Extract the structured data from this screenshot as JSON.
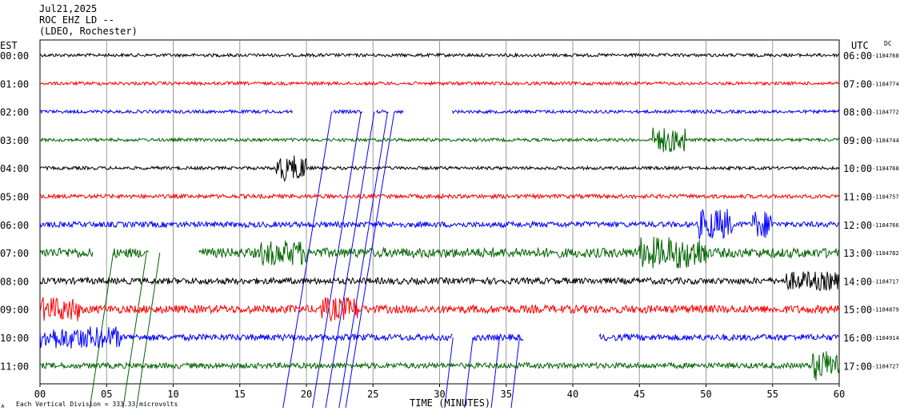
{
  "header": {
    "date": "Jul21,2025",
    "station": "ROC EHZ LD --",
    "network": "(LDEO, Rochester)"
  },
  "chart_data": {
    "type": "line",
    "title": "",
    "left_axis_label": "EST",
    "right_axis_label": "UTC",
    "dc_label": "DC",
    "xlabel": "TIME (MINUTES)",
    "xlim": [
      0,
      60
    ],
    "x_ticks": [
      "00",
      "05",
      "10",
      "15",
      "20",
      "25",
      "30",
      "35",
      "40",
      "45",
      "50",
      "55",
      "60"
    ],
    "grid": true,
    "scale_note": "Each Vertical Division = 333.33 microvolts",
    "corner_mark": "ᴀ",
    "colors": [
      "#000000",
      "#ff0000",
      "#0000ff",
      "#006400"
    ],
    "rows": [
      {
        "est": "00:00",
        "utc": "06:00",
        "dc": "-1184768",
        "color": "#000000",
        "noise": 2,
        "gaps": [],
        "bursts": []
      },
      {
        "est": "01:00",
        "utc": "07:00",
        "dc": "-1184774",
        "color": "#ff0000",
        "noise": 2,
        "gaps": [],
        "bursts": []
      },
      {
        "est": "02:00",
        "utc": "08:00",
        "dc": "-1184772",
        "color": "#0000ff",
        "noise": 2,
        "gaps": [
          [
            19,
            22
          ],
          [
            24.2,
            25.2
          ],
          [
            26.2,
            26.6
          ],
          [
            27.3,
            30.9
          ]
        ],
        "bursts": []
      },
      {
        "est": "03:00",
        "utc": "09:00",
        "dc": "-1184744",
        "color": "#006400",
        "noise": 2,
        "gaps": [],
        "bursts": [
          [
            46,
            48.5,
            14
          ]
        ]
      },
      {
        "est": "04:00",
        "utc": "10:00",
        "dc": "-1184768",
        "color": "#000000",
        "noise": 2,
        "gaps": [],
        "bursts": [
          [
            17.7,
            20,
            14
          ]
        ]
      },
      {
        "est": "05:00",
        "utc": "11:00",
        "dc": "-1184757",
        "color": "#ff0000",
        "noise": 2.5,
        "gaps": [],
        "bursts": []
      },
      {
        "est": "06:00",
        "utc": "12:00",
        "dc": "-1184766",
        "color": "#0000ff",
        "noise": 3.5,
        "gaps": [],
        "bursts": [
          [
            49.5,
            52,
            16
          ],
          [
            53.5,
            55,
            14
          ]
        ]
      },
      {
        "est": "07:00",
        "utc": "13:00",
        "dc": "-1184782",
        "color": "#006400",
        "noise": 6,
        "gaps": [
          [
            4,
            5.5
          ],
          [
            8.2,
            11.9
          ]
        ],
        "bursts": [
          [
            16.5,
            20,
            10
          ],
          [
            45,
            50,
            14
          ]
        ]
      },
      {
        "est": "08:00",
        "utc": "14:00",
        "dc": "-1184717",
        "color": "#000000",
        "noise": 4,
        "gaps": [],
        "bursts": [
          [
            56,
            60,
            8
          ]
        ]
      },
      {
        "est": "09:00",
        "utc": "15:00",
        "dc": "-1184879",
        "color": "#ff0000",
        "noise": 5,
        "gaps": [],
        "bursts": [
          [
            0,
            3,
            10
          ],
          [
            21,
            24,
            10
          ]
        ]
      },
      {
        "est": "10:00",
        "utc": "16:00",
        "dc": "-1184914",
        "color": "#0000ff",
        "noise": 4,
        "gaps": [
          [
            31,
            32.5
          ],
          [
            36.3,
            42
          ]
        ],
        "bursts": [
          [
            0,
            6,
            10
          ]
        ]
      },
      {
        "est": "11:00",
        "utc": "17:00",
        "dc": "-1184727",
        "color": "#006400",
        "noise": 3.5,
        "gaps": [],
        "bursts": [
          [
            58,
            60,
            16
          ]
        ]
      }
    ],
    "slants": [
      {
        "row": 2,
        "x": 21.9
      },
      {
        "row": 2,
        "x": 24.1
      },
      {
        "row": 2,
        "x": 25.1
      },
      {
        "row": 2,
        "x": 26.1
      },
      {
        "row": 2,
        "x": 26.6
      },
      {
        "row": 7,
        "x": 5.5
      },
      {
        "row": 7,
        "x": 8.0
      },
      {
        "row": 7,
        "x": 9.0
      },
      {
        "row": 10,
        "x": 31.0
      },
      {
        "row": 10,
        "x": 32.5
      },
      {
        "row": 10,
        "x": 34.5
      },
      {
        "row": 10,
        "x": 36.0
      }
    ]
  }
}
